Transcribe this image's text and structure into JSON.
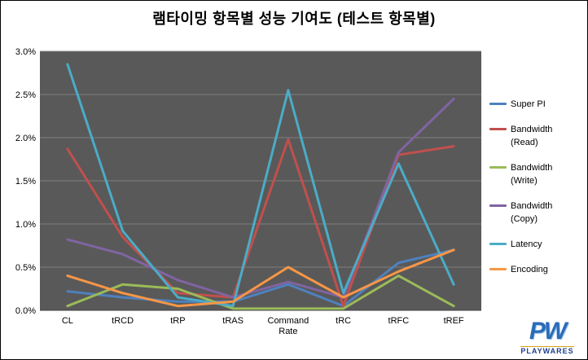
{
  "title": "램타이밍 항목별 성능 기여도 (테스트 항목별)",
  "chart_data": {
    "type": "line",
    "title": "램타이밍 항목별 성능 기여도 (테스트 항목별)",
    "categories": [
      "CL",
      "tRCD",
      "tRP",
      "tRAS",
      "Command Rate",
      "tRC",
      "tRFC",
      "tREF"
    ],
    "series": [
      {
        "name": "Super PI",
        "color": "#4F81BD",
        "values": [
          0.22,
          0.15,
          0.1,
          0.1,
          0.3,
          0.05,
          0.55,
          0.7
        ]
      },
      {
        "name": "Bandwidth (Read)",
        "color": "#C0504D",
        "values": [
          1.87,
          0.85,
          0.2,
          0.15,
          1.98,
          0.05,
          1.8,
          1.9
        ]
      },
      {
        "name": "Bandwidth (Write)",
        "color": "#9BBB59",
        "values": [
          0.05,
          0.3,
          0.25,
          0.02,
          0.02,
          0.02,
          0.4,
          0.05
        ]
      },
      {
        "name": "Bandwidth (Copy)",
        "color": "#8064A2",
        "values": [
          0.82,
          0.65,
          0.35,
          0.15,
          0.33,
          0.15,
          1.83,
          2.45
        ]
      },
      {
        "name": "Latency",
        "color": "#4BACC6",
        "values": [
          2.85,
          0.92,
          0.15,
          0.05,
          2.55,
          0.2,
          1.7,
          0.3
        ]
      },
      {
        "name": "Encoding",
        "color": "#F79646",
        "values": [
          0.4,
          0.2,
          0.05,
          0.1,
          0.5,
          0.15,
          0.45,
          0.7
        ]
      }
    ],
    "xlabel": "",
    "ylabel": "",
    "ylim": [
      0,
      3.0
    ],
    "ytick_step": 0.5,
    "ytick_labels": [
      "0.0%",
      "0.5%",
      "1.0%",
      "1.5%",
      "2.0%",
      "2.5%",
      "3.0%"
    ],
    "grid": true,
    "legend_position": "right",
    "plot_bg": "#595959",
    "grid_color": "#808080",
    "axis_text_color": "#000000"
  },
  "logo": {
    "monogram": "PW",
    "brand": "PLAYWARES"
  }
}
